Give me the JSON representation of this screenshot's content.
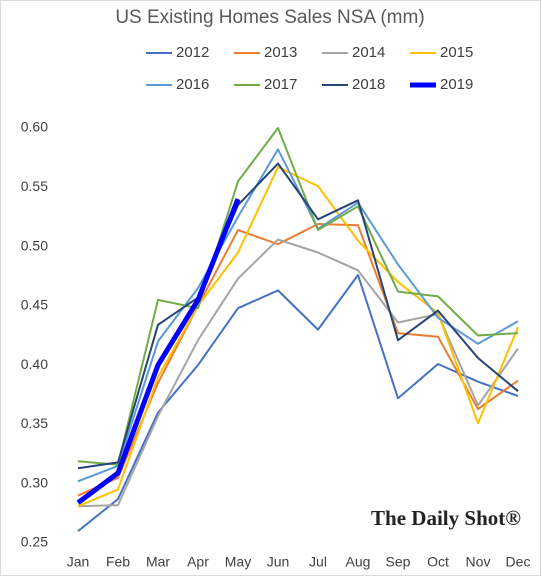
{
  "chart_data": {
    "type": "line",
    "title": "US Existing Homes Sales NSA (mm)",
    "categories": [
      "Jan",
      "Feb",
      "Mar",
      "Apr",
      "May",
      "Jun",
      "Jul",
      "Aug",
      "Sep",
      "Oct",
      "Nov",
      "Dec"
    ],
    "series": [
      {
        "name": "2012",
        "color": "#4472c4",
        "values": [
          0.26,
          0.287,
          0.36,
          0.4,
          0.448,
          0.463,
          0.43,
          0.476,
          0.372,
          0.401,
          0.386,
          0.374
        ]
      },
      {
        "name": "2013",
        "color": "#ed7d31",
        "values": [
          0.29,
          0.305,
          0.385,
          0.45,
          0.514,
          0.502,
          0.519,
          0.518,
          0.427,
          0.424,
          0.363,
          0.387
        ]
      },
      {
        "name": "2014",
        "color": "#a5a5a5",
        "values": [
          0.281,
          0.282,
          0.357,
          0.421,
          0.473,
          0.506,
          0.495,
          0.48,
          0.436,
          0.443,
          0.366,
          0.414
        ]
      },
      {
        "name": "2015",
        "color": "#ffc000",
        "values": [
          0.281,
          0.295,
          0.39,
          0.45,
          0.495,
          0.567,
          0.551,
          0.505,
          0.47,
          0.444,
          0.351,
          0.432
        ]
      },
      {
        "name": "2016",
        "color": "#5b9bd5",
        "values": [
          0.302,
          0.315,
          0.42,
          0.465,
          0.525,
          0.582,
          0.515,
          0.537,
          0.485,
          0.44,
          0.418,
          0.437
        ]
      },
      {
        "name": "2017",
        "color": "#70ad47",
        "values": [
          0.319,
          0.316,
          0.455,
          0.448,
          0.555,
          0.6,
          0.514,
          0.534,
          0.462,
          0.458,
          0.425,
          0.427
        ]
      },
      {
        "name": "2018",
        "color": "#264478",
        "values": [
          0.313,
          0.318,
          0.434,
          0.457,
          0.535,
          0.57,
          0.523,
          0.539,
          0.421,
          0.446,
          0.406,
          0.378
        ]
      },
      {
        "name": "2019",
        "color": "#0000ff",
        "line_style": "bold",
        "values": [
          0.284,
          0.309,
          0.4,
          0.455,
          0.54,
          null,
          null,
          null,
          null,
          null,
          null,
          null
        ]
      }
    ],
    "ylim": [
      0.25,
      0.6
    ],
    "yticks": [
      {
        "value": 0.25,
        "label": "0.25"
      },
      {
        "value": 0.3,
        "label": "0.30"
      },
      {
        "value": 0.35,
        "label": "0.35"
      },
      {
        "value": 0.4,
        "label": "0.40"
      },
      {
        "value": 0.45,
        "label": "0.45"
      },
      {
        "value": 0.5,
        "label": "0.50"
      },
      {
        "value": 0.55,
        "label": "0.55"
      },
      {
        "value": 0.6,
        "label": "0.60"
      }
    ],
    "grid": false,
    "legend": "top",
    "watermark": "The Daily Shot®"
  }
}
